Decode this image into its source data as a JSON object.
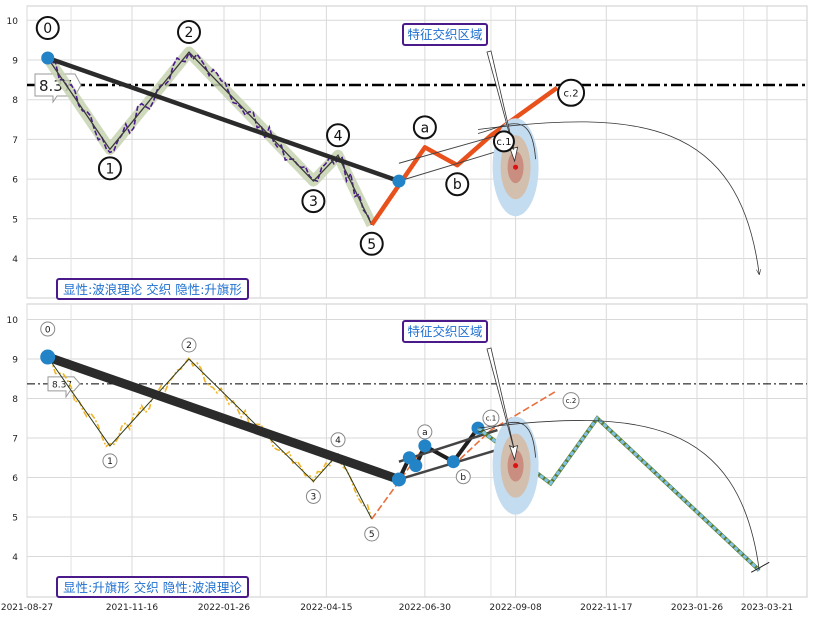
{
  "chart_data": [
    {
      "type": "line",
      "panel": "top",
      "ylim": [
        3.4,
        10.35
      ],
      "yticks": [
        4,
        5,
        6,
        7,
        8,
        9,
        10
      ],
      "grid": true,
      "price_line": {
        "value": 8.37,
        "label": "8.37"
      },
      "wave_points": [
        {
          "label": "0",
          "date": "2021-09-12",
          "value": 9.05
        },
        {
          "label": "1",
          "date": "2021-10-30",
          "value": 6.75
        },
        {
          "label": "2",
          "date": "2021-12-30",
          "value": 9.2
        },
        {
          "label": "3",
          "date": "2022-04-05",
          "value": 5.95
        },
        {
          "label": "4",
          "date": "2022-04-24",
          "value": 6.6
        },
        {
          "label": "5",
          "date": "2022-05-20",
          "value": 4.85
        },
        {
          "label": "a",
          "date": "2022-06-30",
          "value": 6.8
        },
        {
          "label": "b",
          "date": "2022-07-25",
          "value": 6.35
        },
        {
          "label": "c.1",
          "date": "2022-08-20",
          "value": 7.1
        },
        {
          "label": "c.2",
          "date": "2022-10-10",
          "value": 8.3
        }
      ],
      "trendline": [
        {
          "date": "2021-09-12",
          "value": 9.05
        },
        {
          "date": "2022-06-10",
          "value": 5.95
        }
      ],
      "annotation": "特征交织区域",
      "caption": "显性:波浪理论 交织 隐性:升旗形"
    },
    {
      "type": "line",
      "panel": "bottom",
      "ylim": [
        3.4,
        10.35
      ],
      "yticks": [
        4,
        5,
        6,
        7,
        8,
        9,
        10
      ],
      "grid": true,
      "price_line": {
        "value": 8.37,
        "label": "8.37"
      },
      "wave_points": [
        {
          "label": "0",
          "date": "2021-09-12",
          "value": 9.05
        },
        {
          "label": "1",
          "date": "2021-10-30",
          "value": 6.8
        },
        {
          "label": "2",
          "date": "2021-12-30",
          "value": 9.0
        },
        {
          "label": "3",
          "date": "2022-04-05",
          "value": 5.9
        },
        {
          "label": "4",
          "date": "2022-04-24",
          "value": 6.6
        },
        {
          "label": "5",
          "date": "2022-05-20",
          "value": 4.95
        },
        {
          "label": "a",
          "date": "2022-06-30",
          "value": 6.8
        },
        {
          "label": "b",
          "date": "2022-07-25",
          "value": 6.4
        },
        {
          "label": "c.1",
          "date": "2022-08-20",
          "value": 7.2
        },
        {
          "label": "c.2",
          "date": "2022-10-10",
          "value": 8.2
        }
      ],
      "flag_points": [
        {
          "date": "2022-06-10",
          "value": 5.95
        },
        {
          "date": "2022-06-18",
          "value": 6.5
        },
        {
          "date": "2022-06-23",
          "value": 6.3
        },
        {
          "date": "2022-06-30",
          "value": 6.8
        },
        {
          "date": "2022-07-22",
          "value": 6.4
        },
        {
          "date": "2022-08-10",
          "value": 7.25
        }
      ],
      "projection": [
        {
          "date": "2022-08-10",
          "value": 7.25
        },
        {
          "date": "2022-10-05",
          "value": 5.85
        },
        {
          "date": "2022-11-10",
          "value": 7.5
        },
        {
          "date": "2023-03-15",
          "value": 3.65
        }
      ],
      "annotation": "特征交织区域",
      "caption": "显性:升旗形 交织 隐性:波浪理论"
    }
  ],
  "x_axis": {
    "ticks": [
      "2021-08-27",
      "2021-11-16",
      "2022-01-26",
      "2022-04-15",
      "2022-06-30",
      "2022-09-08",
      "2022-11-17",
      "2023-01-26",
      "2023-03-21"
    ]
  }
}
